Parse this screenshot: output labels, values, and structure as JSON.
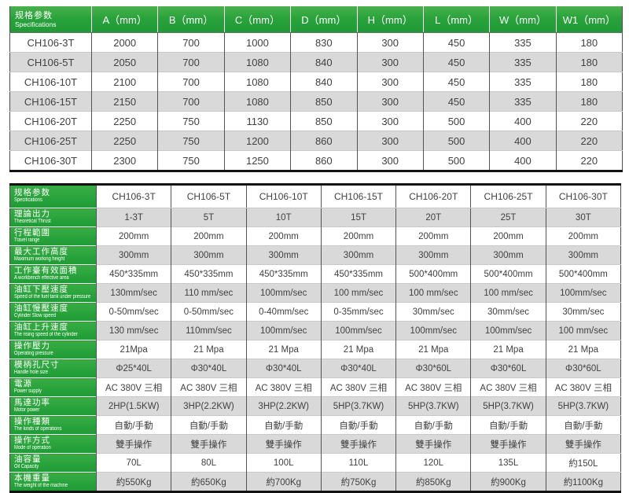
{
  "style": {
    "accent_green": "#2aa33c",
    "stripe_gray": "#d9d9d9",
    "text_color": "#414141",
    "heavy_border": "#121212"
  },
  "dimensions_table": {
    "corner": {
      "zh": "规格参数",
      "en": "Specifications"
    },
    "columns": [
      "A（mm）",
      "B（mm）",
      "C（mm）",
      "D（mm）",
      "H（mm）",
      "L（mm）",
      "W（mm）",
      "W1（mm）"
    ],
    "rows": [
      {
        "model": "CH106-3T",
        "values": [
          "2000",
          "700",
          "1000",
          "830",
          "300",
          "450",
          "335",
          "180"
        ]
      },
      {
        "model": "CH106-5T",
        "values": [
          "2050",
          "700",
          "1080",
          "840",
          "300",
          "450",
          "335",
          "180"
        ]
      },
      {
        "model": "CH106-10T",
        "values": [
          "2100",
          "700",
          "1080",
          "840",
          "300",
          "450",
          "335",
          "180"
        ]
      },
      {
        "model": "CH106-15T",
        "values": [
          "2150",
          "700",
          "1080",
          "850",
          "300",
          "450",
          "335",
          "180"
        ]
      },
      {
        "model": "CH106-20T",
        "values": [
          "2250",
          "750",
          "1130",
          "850",
          "300",
          "500",
          "400",
          "220"
        ]
      },
      {
        "model": "CH106-25T",
        "values": [
          "2250",
          "750",
          "1200",
          "860",
          "300",
          "500",
          "400",
          "220"
        ]
      },
      {
        "model": "CH106-30T",
        "values": [
          "2300",
          "750",
          "1250",
          "860",
          "300",
          "500",
          "400",
          "220"
        ]
      }
    ]
  },
  "specs_table": {
    "corner": {
      "zh": "规格参数",
      "en": "Specifications"
    },
    "models": [
      "CH106-3T",
      "CH106-5T",
      "CH106-10T",
      "CH106-15T",
      "CH106-20T",
      "CH106-25T",
      "CH106-30T"
    ],
    "rows": [
      {
        "zh": "理論出力",
        "en": "Theoretical Thrust",
        "values": [
          "1-3T",
          "5T",
          "10T",
          "15T",
          "20T",
          "25T",
          "30T"
        ]
      },
      {
        "zh": "行程範圍",
        "en": "Travel range",
        "values": [
          "200mm",
          "200mm",
          "200mm",
          "200mm",
          "200mm",
          "200mm",
          "200mm"
        ]
      },
      {
        "zh": "最大工作高度",
        "en": "Maximum working height",
        "values": [
          "300mm",
          "300mm",
          "300mm",
          "300mm",
          "300mm",
          "300mm",
          "300mm"
        ]
      },
      {
        "zh": "工作臺有效面積",
        "en": "A workbench effective area",
        "values": [
          "450*335mm",
          "450*335mm",
          "450*335mm",
          "450*335mm",
          "500*400mm",
          "500*400mm",
          "500*400mm"
        ]
      },
      {
        "zh": "油缸下壓速度",
        "en": "Speed of the fuel tank under pressure",
        "values": [
          "130mm/sec",
          "110 mm/sec",
          "100mm/sec",
          "100 mm/sec",
          "100 mm/sec",
          "100 mm/sec",
          "100mm/sec"
        ]
      },
      {
        "zh": "油缸慢壓速度",
        "en": "Cylinder Slow speed",
        "values": [
          "0-50mm/sec",
          "0-50mm/sec",
          "0-40mm/sec",
          "0-35mm/sec",
          "30mm/sec",
          "30mm/sec",
          "30mm/sec"
        ]
      },
      {
        "zh": "油缸上升速度",
        "en": "The rising speed of the cylinder",
        "values": [
          "130 mm/sec",
          "110mm/sec",
          "100mm/sec",
          "100mm/sec",
          "100mm/sec",
          "100mm/sec",
          "100 mm/sec"
        ]
      },
      {
        "zh": "操作壓力",
        "en": "Operating pressure",
        "values": [
          "21Mpa",
          "21 Mpa",
          "21 Mpa",
          "21 Mpa",
          "21 Mpa",
          "21 Mpa",
          "21 Mpa"
        ]
      },
      {
        "zh": "模柄孔尺寸",
        "en": "Handle hole size",
        "values": [
          "Φ25*40L",
          "Φ30*40L",
          "Φ30*40L",
          "Φ30*40L",
          "Φ30*60L",
          "Φ30*60L",
          "Φ30*60L"
        ]
      },
      {
        "zh": "電源",
        "en": "Power supply",
        "values": [
          "AC 380V 三相",
          "AC 380V 三相",
          "AC 380V 三相",
          "AC 380V 三相",
          "AC 380V 三相",
          "AC 380V 三相",
          "AC 380V 三相"
        ]
      },
      {
        "zh": "馬達功率",
        "en": "Motor power",
        "values": [
          "2HP(1.5KW)",
          "3HP(2.2KW)",
          "3HP(2.2KW)",
          "5HP(3.7KW)",
          "5HP(3.7KW)",
          "5HP(3.7KW)",
          "5HP(3.7KW)"
        ]
      },
      {
        "zh": "操作種類",
        "en": "The kinds of operations",
        "values": [
          "自動/手動",
          "自動/手動",
          "自動/手動",
          "自動/手動",
          "自動/手動",
          "自動/手動",
          "自動/手動"
        ]
      },
      {
        "zh": "操作方式",
        "en": "Mode of operation",
        "values": [
          "雙手操作",
          "雙手操作",
          "雙手操作",
          "雙手操作",
          "雙手操作",
          "雙手操作",
          "雙手操作"
        ]
      },
      {
        "zh": "油容量",
        "en": "Oil Capacity",
        "values": [
          "70L",
          "80L",
          "100L",
          "110L",
          "120L",
          "135L",
          "約150L"
        ]
      },
      {
        "zh": "本機重量",
        "en": "The weight of the machine",
        "values": [
          "約550Kg",
          "約650Kg",
          "約700Kg",
          "約750Kg",
          "約850Kg",
          "約900Kg",
          "約1100Kg"
        ]
      }
    ]
  }
}
